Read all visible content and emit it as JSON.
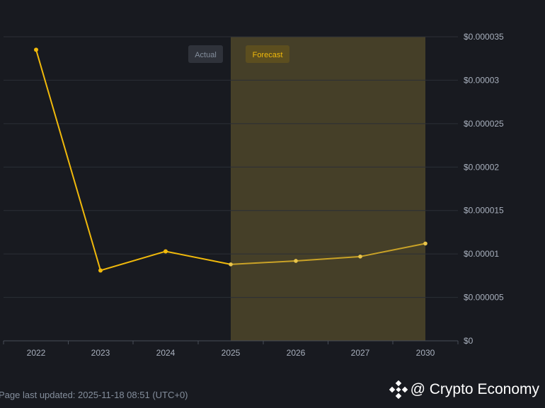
{
  "chart_data": {
    "type": "line",
    "title": "",
    "xlabel": "",
    "ylabel": "",
    "categories": [
      "2022",
      "2023",
      "2024",
      "2025",
      "2026",
      "2027",
      "2030"
    ],
    "series": [
      {
        "values": [
          3.35e-05,
          8.1e-06,
          1.03e-05,
          8.8e-06,
          9.2e-06,
          9.7e-06,
          1.12e-05
        ]
      }
    ],
    "actual_range": [
      "2022",
      "2025"
    ],
    "forecast_range": [
      "2025",
      "2030"
    ],
    "ylim": [
      0,
      3.5e-05
    ],
    "y_ticks": [
      0,
      5e-06,
      1e-05,
      1.5e-05,
      2e-05,
      2.5e-05,
      3e-05,
      3.5e-05
    ],
    "y_tick_labels": [
      "$0",
      "$0.000005",
      "$0.00001",
      "$0.000015",
      "$0.00002",
      "$0.000025",
      "$0.00003",
      "$0.000035"
    ],
    "legend": {
      "actual_label": "Actual",
      "forecast_label": "Forecast",
      "placement": "top"
    },
    "grid": true,
    "colors": {
      "line": "#f0b90b",
      "forecast_band": "#453f28",
      "gridline": "#2b2f36",
      "axis_text": "#a8b0bd",
      "background": "#181a20"
    }
  },
  "footer": {
    "last_updated": "Page last updated: 2025-11-18 08:51 (UTC+0)"
  },
  "watermark": {
    "text": "@ Crypto Economy",
    "icon": "binance-diamond-icon"
  }
}
